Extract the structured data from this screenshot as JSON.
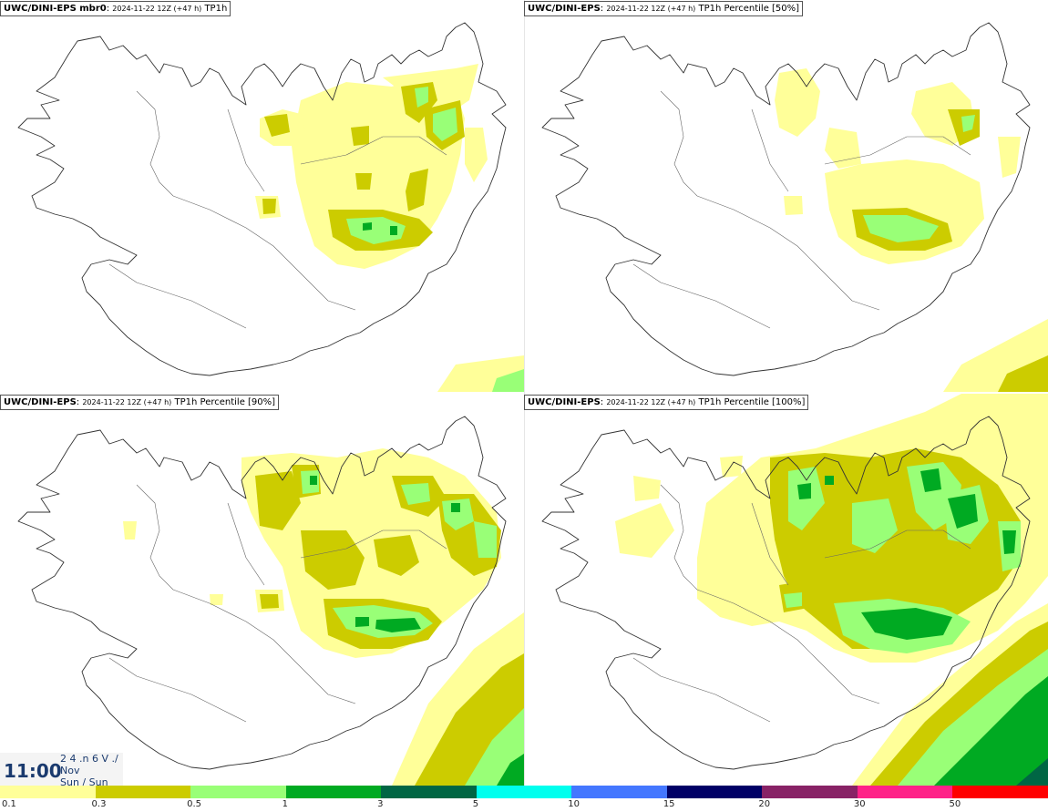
{
  "panels": [
    {
      "model": "UWC/DINI-EPS mbr0",
      "datetime": "2024-11-22 12Z (+47 h)",
      "field": "TP1h"
    },
    {
      "model": "UWC/DINI-EPS",
      "datetime": "2024-11-22 12Z (+47 h)",
      "field": "TP1h Percentile [50%]"
    },
    {
      "model": "UWC/DINI-EPS",
      "datetime": "2024-11-22 12Z (+47 h)",
      "field": "TP1h Percentile [90%]"
    },
    {
      "model": "UWC/DINI-EPS",
      "datetime": "2024-11-22 12Z (+47 h)",
      "field": "TP1h Percentile [100%]"
    }
  ],
  "clock": {
    "time": "11:00",
    "line1": "2 4 .n 6 V ./",
    "line2": "Nov",
    "line3": "Sun / Sun"
  },
  "legend": {
    "labels": [
      "0.1",
      "0.3",
      "0.5",
      "1",
      "3",
      "5",
      "10",
      "15",
      "20",
      "30",
      "50"
    ],
    "colors": [
      "#ffff99",
      "#cccc00",
      "#99ff77",
      "#00aa22",
      "#006644",
      "#00ffee",
      "#4477ff",
      "#000066",
      "#882266",
      "#ff2288",
      "#ff0000"
    ]
  },
  "palette": {
    "light": "#ffff99",
    "mid": "#cccc00",
    "green": "#99ff77",
    "dark": "#00aa22",
    "darker": "#006644",
    "coast": "#333333"
  }
}
